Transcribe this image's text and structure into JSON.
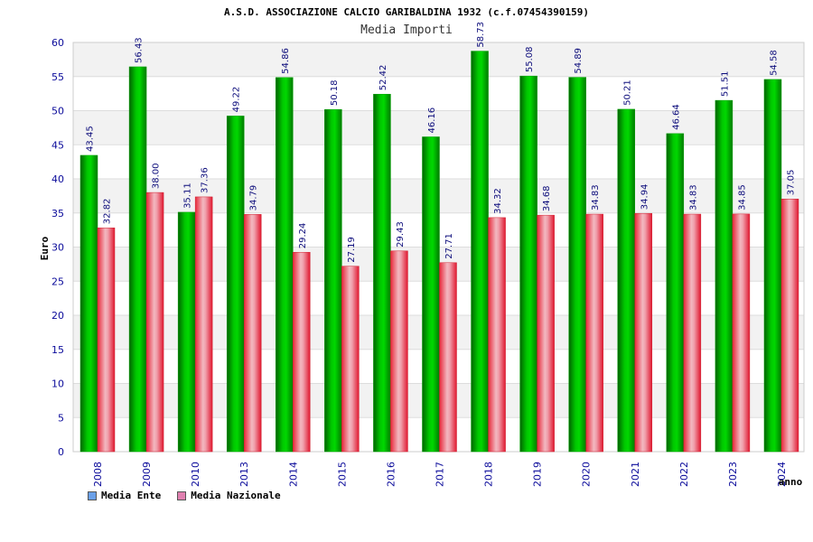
{
  "chart_data": {
    "type": "bar",
    "title": "A.S.D. ASSOCIAZIONE CALCIO GARIBALDINA 1932 (c.f.07454390159)",
    "subtitle": "Media Importi",
    "xlabel": "anno",
    "ylabel": "Euro",
    "ylim": [
      0,
      60
    ],
    "yticks": [
      0,
      5,
      10,
      15,
      20,
      25,
      30,
      35,
      40,
      45,
      50,
      55,
      60
    ],
    "categories": [
      "2008",
      "2009",
      "2010",
      "2013",
      "2014",
      "2015",
      "2016",
      "2017",
      "2018",
      "2019",
      "2020",
      "2021",
      "2022",
      "2023",
      "2024"
    ],
    "series": [
      {
        "name": "Media Ente",
        "values": [
          43.45,
          56.43,
          35.11,
          49.22,
          54.86,
          50.18,
          52.42,
          46.16,
          58.73,
          55.08,
          54.89,
          50.21,
          46.64,
          51.51,
          54.58
        ],
        "labels": [
          "43.45",
          "56.43",
          "35.11",
          "49.22",
          "54.86",
          "50.18",
          "52.42",
          "46.16",
          "58.73",
          "55.08",
          "54.89",
          "50.21",
          "46.64",
          "51.51",
          "54.58"
        ],
        "color": "#00b000",
        "legend_color": "#6aa0e8"
      },
      {
        "name": "Media Nazionale",
        "values": [
          32.82,
          38.0,
          37.36,
          34.79,
          29.24,
          27.19,
          29.43,
          27.71,
          34.32,
          34.68,
          34.83,
          34.94,
          34.83,
          34.85,
          37.05
        ],
        "labels": [
          "32.82",
          "38.00",
          "37.36",
          "34.79",
          "29.24",
          "27.19",
          "29.43",
          "27.71",
          "34.32",
          "34.68",
          "34.83",
          "34.94",
          "34.83",
          "34.85",
          "37.05"
        ],
        "color": "#e83040",
        "legend_color": "#e080b0"
      }
    ],
    "legend_position": "bottom-left"
  }
}
